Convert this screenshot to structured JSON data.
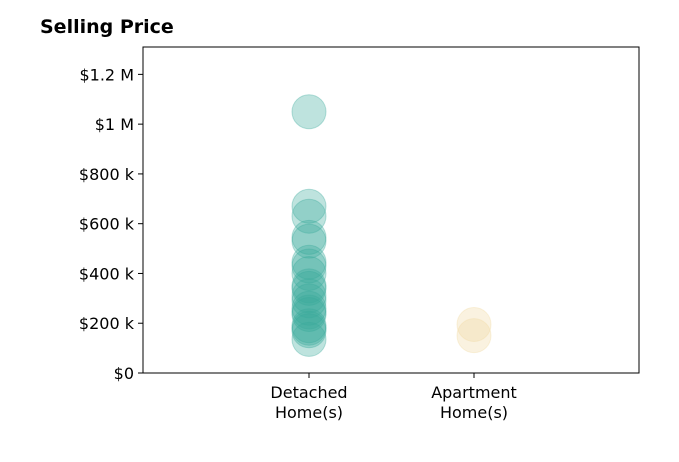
{
  "chart_data": {
    "type": "scatter",
    "title": "Selling Price",
    "xlabel": "",
    "ylabel": "",
    "categories": [
      "Detached\nHome(s)",
      "Apartment\nHome(s)"
    ],
    "ylim": [
      0,
      1310000
    ],
    "yticks": [
      0,
      200000,
      400000,
      600000,
      800000,
      1000000,
      1200000
    ],
    "ytick_labels": [
      "$0",
      "$200 k",
      "$400 k",
      "$600 k",
      "$800 k",
      "$1 M",
      "$1.2 M"
    ],
    "grid": false,
    "series": [
      {
        "category_index": 0,
        "color": "#3aa99b",
        "values": [
          1050000,
          670000,
          630000,
          545000,
          530000,
          445000,
          430000,
          400000,
          350000,
          340000,
          310000,
          290000,
          260000,
          245000,
          235000,
          190000,
          180000,
          170000,
          135000
        ]
      },
      {
        "category_index": 1,
        "color": "#f0d9a0",
        "values": [
          195000,
          150000
        ]
      }
    ]
  }
}
